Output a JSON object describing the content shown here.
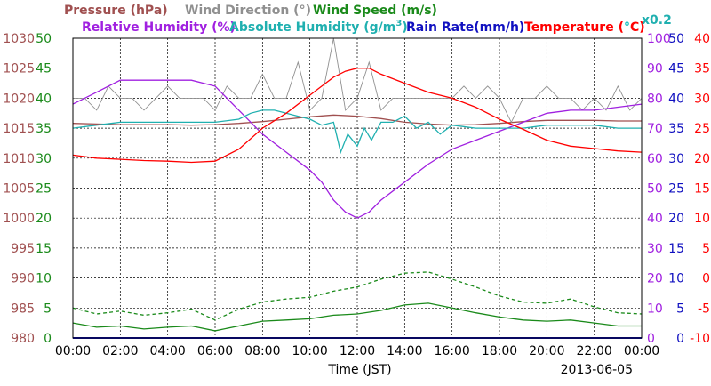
{
  "chart_data": {
    "type": "line",
    "title": "",
    "date": "2013-06-05",
    "xlabel": "Time (JST)",
    "x_ticks": [
      "00:00",
      "02:00",
      "04:00",
      "06:00",
      "08:00",
      "10:00",
      "12:00",
      "14:00",
      "16:00",
      "18:00",
      "20:00",
      "22:00",
      "00:00"
    ],
    "legend": {
      "pressure": "Pressure (hPa)",
      "wind_dir": "Wind Direction (°)",
      "wind_speed": "Wind Speed (m/s)",
      "rh": "Relative Humidity (%)",
      "ah_main": "Absolute Humidity (g/m",
      "ah_sup": "3",
      "ah_end": ")",
      "rain": "Rain Rate(mm/h)",
      "temp_main": "Temperature (",
      "temp_deg": "°",
      "temp_end": "C)",
      "factor": "x0.2"
    },
    "axes": {
      "pressure": {
        "ticks": [
          "980",
          "985",
          "990",
          "995",
          "1000",
          "1005",
          "1010",
          "1015",
          "1020",
          "1025",
          "1030"
        ],
        "range": [
          980,
          1030
        ]
      },
      "wind": {
        "ticks": [
          "0",
          "5",
          "10",
          "15",
          "20",
          "25",
          "30",
          "35",
          "40",
          "45",
          "50"
        ],
        "range": [
          0,
          50
        ]
      },
      "rh": {
        "ticks": [
          "0",
          "10",
          "20",
          "30",
          "40",
          "50",
          "60",
          "70",
          "80",
          "90",
          "100"
        ],
        "range": [
          0,
          100
        ]
      },
      "rain": {
        "ticks": [
          "0",
          "5",
          "10",
          "15",
          "20",
          "25",
          "30",
          "35",
          "40",
          "45",
          "50"
        ],
        "range": [
          0,
          50
        ]
      },
      "temp": {
        "ticks": [
          "-10",
          "-5",
          "0",
          "5",
          "10",
          "15",
          "20",
          "25",
          "30",
          "35",
          "40"
        ],
        "range": [
          -10,
          40
        ]
      }
    },
    "grid": true,
    "series": [
      {
        "key": "pressure",
        "name": "Pressure (hPa)",
        "axis": "pressure",
        "color": "#a05050",
        "x": [
          0,
          1,
          2,
          3,
          4,
          5,
          6,
          7,
          8,
          9,
          10,
          11,
          12,
          13,
          14,
          15,
          16,
          17,
          18,
          19,
          20,
          21,
          22,
          23,
          24
        ],
        "y": [
          1015.8,
          1015.7,
          1015.6,
          1015.6,
          1015.6,
          1015.5,
          1015.6,
          1015.8,
          1016.1,
          1016.5,
          1016.9,
          1017.2,
          1017.0,
          1016.6,
          1016.0,
          1015.7,
          1015.5,
          1015.6,
          1015.8,
          1016.1,
          1016.3,
          1016.3,
          1016.3,
          1016.2,
          1016.2
        ]
      },
      {
        "key": "wind_dir",
        "name": "Wind Direction (°)",
        "axis": "wind",
        "scale": 0.2,
        "color": "#909090",
        "note": "noisy trace fluctuating mostly between 180 and 220 degrees (x0.2 → 36–44 on wind axis)",
        "x": [
          0,
          0.5,
          1,
          1.5,
          2,
          2.5,
          3,
          3.5,
          4,
          4.5,
          5,
          5.5,
          6,
          6.5,
          7,
          7.5,
          8,
          8.5,
          9,
          9.5,
          10,
          10.5,
          11,
          11.5,
          12,
          12.5,
          13,
          13.5,
          14,
          14.5,
          15,
          15.5,
          16,
          16.5,
          17,
          17.5,
          18,
          18.5,
          19,
          19.5,
          20,
          20.5,
          21,
          21.5,
          22,
          22.5,
          23,
          23.5,
          24
        ],
        "y": [
          200,
          200,
          190,
          210,
          200,
          200,
          190,
          200,
          210,
          200,
          200,
          200,
          190,
          210,
          200,
          200,
          220,
          200,
          200,
          230,
          190,
          200,
          250,
          190,
          200,
          230,
          190,
          200,
          200,
          200,
          200,
          200,
          200,
          210,
          200,
          210,
          200,
          180,
          200,
          200,
          210,
          200,
          200,
          190,
          200,
          190,
          210,
          190,
          200
        ]
      },
      {
        "key": "wind_speed_mean",
        "name": "Wind Speed (m/s)",
        "axis": "wind",
        "color": "#1a8a1a",
        "x": [
          0,
          1,
          2,
          3,
          4,
          5,
          6,
          7,
          8,
          9,
          10,
          11,
          12,
          13,
          14,
          15,
          16,
          17,
          18,
          19,
          20,
          21,
          22,
          23,
          24
        ],
        "y": [
          2.5,
          1.8,
          2.0,
          1.5,
          1.8,
          2.0,
          1.2,
          2.0,
          2.8,
          3.0,
          3.2,
          3.8,
          4.0,
          4.6,
          5.5,
          5.8,
          5.0,
          4.2,
          3.5,
          3.0,
          2.8,
          3.0,
          2.5,
          2.0,
          2.0
        ]
      },
      {
        "key": "wind_speed_gust",
        "name": "Wind Speed gust (m/s)",
        "axis": "wind",
        "dashed": true,
        "color": "#1a8a1a",
        "x": [
          0,
          1,
          2,
          3,
          4,
          5,
          6,
          7,
          8,
          9,
          10,
          11,
          12,
          13,
          14,
          15,
          16,
          17,
          18,
          19,
          20,
          21,
          22,
          23,
          24
        ],
        "y": [
          5,
          4,
          4.5,
          3.8,
          4.2,
          4.8,
          3.0,
          4.8,
          6,
          6.5,
          6.8,
          7.8,
          8.5,
          9.8,
          10.8,
          11.0,
          9.8,
          8.5,
          7.0,
          6.0,
          5.8,
          6.5,
          5.2,
          4.2,
          4.0
        ]
      },
      {
        "key": "rh",
        "name": "Relative Humidity (%)",
        "axis": "rh",
        "color": "#a020e0",
        "x": [
          0,
          1,
          2,
          3,
          4,
          5,
          6,
          7,
          8,
          9,
          10,
          10.5,
          11,
          11.5,
          12,
          12.5,
          13,
          14,
          15,
          16,
          17,
          18,
          19,
          20,
          21,
          22,
          23,
          24
        ],
        "y": [
          78,
          82,
          86,
          86,
          86,
          86,
          84,
          76,
          68,
          62,
          56,
          52,
          46,
          42,
          40,
          42,
          46,
          52,
          58,
          63,
          66,
          69,
          72,
          75,
          76,
          76,
          77,
          78
        ]
      },
      {
        "key": "ah",
        "name": "Absolute Humidity (g/m3)",
        "axis": "rh",
        "color": "#20b0b0",
        "x": [
          0,
          1,
          2,
          3,
          4,
          5,
          6,
          7,
          7.5,
          8,
          8.5,
          9,
          9.5,
          10,
          10.5,
          11,
          11.3,
          11.6,
          12,
          12.3,
          12.6,
          13,
          13.5,
          14,
          14.5,
          15,
          15.5,
          16,
          17,
          18,
          19,
          20,
          21,
          22,
          23,
          24
        ],
        "y": [
          70,
          71,
          72,
          72,
          72,
          72,
          72,
          73,
          75,
          76,
          76,
          75,
          74,
          73,
          71,
          72,
          62,
          68,
          64,
          70,
          66,
          72,
          72,
          74,
          70,
          72,
          68,
          71,
          70,
          70,
          70,
          71,
          71,
          71,
          70,
          70
        ]
      },
      {
        "key": "rain",
        "name": "Rain Rate(mm/h)",
        "axis": "rain",
        "color": "#1010c0",
        "x": [
          0,
          24
        ],
        "y": [
          0,
          0
        ]
      },
      {
        "key": "temp",
        "name": "Temperature (°C)",
        "axis": "temp",
        "color": "#ff0000",
        "x": [
          0,
          1,
          2,
          3,
          4,
          5,
          6,
          7,
          8,
          9,
          10,
          10.5,
          11,
          11.5,
          12,
          12.5,
          13,
          14,
          15,
          16,
          17,
          18,
          19,
          20,
          21,
          22,
          23,
          24
        ],
        "y": [
          20.5,
          20.0,
          19.8,
          19.6,
          19.5,
          19.3,
          19.5,
          21.5,
          25.0,
          27.5,
          30.5,
          32.0,
          33.5,
          34.5,
          35.0,
          35.0,
          34.0,
          32.5,
          31.0,
          30.0,
          28.5,
          26.5,
          24.8,
          23.0,
          22.0,
          21.6,
          21.2,
          21.0
        ]
      }
    ]
  }
}
